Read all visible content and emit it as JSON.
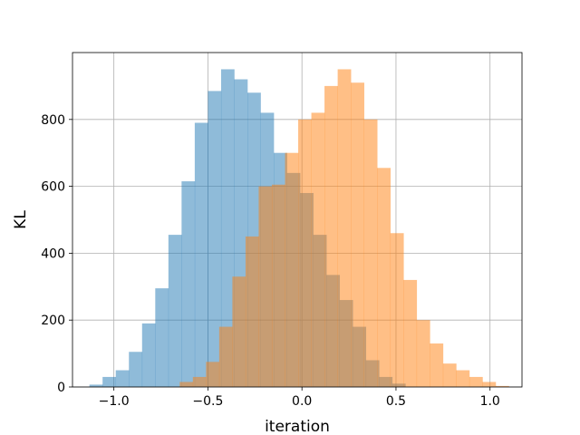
{
  "chart_data": {
    "type": "histogram",
    "title": "",
    "xlabel": "iteration",
    "ylabel": "KL",
    "xlim": [
      -1.22,
      1.17
    ],
    "ylim": [
      0,
      1000
    ],
    "xticks": [
      -1.0,
      -0.5,
      0.0,
      0.5,
      1.0
    ],
    "xtick_labels": [
      "−1.0",
      "−0.5",
      "0.0",
      "0.5",
      "1.0"
    ],
    "yticks": [
      0,
      200,
      400,
      600,
      800
    ],
    "ytick_labels": [
      "0",
      "200",
      "400",
      "600",
      "800"
    ],
    "grid": true,
    "series": [
      {
        "color": "#1f77b4",
        "alpha": 0.5,
        "bins": [
          [
            -1.13,
            -1.06,
            7
          ],
          [
            -1.06,
            -0.99,
            30
          ],
          [
            -0.99,
            -0.92,
            50
          ],
          [
            -0.92,
            -0.85,
            105
          ],
          [
            -0.85,
            -0.78,
            190
          ],
          [
            -0.78,
            -0.71,
            295
          ],
          [
            -0.71,
            -0.64,
            455
          ],
          [
            -0.64,
            -0.57,
            615
          ],
          [
            -0.57,
            -0.5,
            790
          ],
          [
            -0.5,
            -0.43,
            885
          ],
          [
            -0.43,
            -0.36,
            950
          ],
          [
            -0.36,
            -0.29,
            920
          ],
          [
            -0.29,
            -0.22,
            880
          ],
          [
            -0.22,
            -0.15,
            820
          ],
          [
            -0.15,
            -0.08,
            700
          ],
          [
            -0.08,
            -0.01,
            640
          ],
          [
            -0.01,
            0.06,
            580
          ],
          [
            0.06,
            0.13,
            455
          ],
          [
            0.13,
            0.2,
            335
          ],
          [
            0.2,
            0.27,
            260
          ],
          [
            0.27,
            0.34,
            180
          ],
          [
            0.34,
            0.41,
            80
          ],
          [
            0.41,
            0.48,
            30
          ],
          [
            0.48,
            0.55,
            10
          ]
        ]
      },
      {
        "color": "#ff7f0e",
        "alpha": 0.5,
        "bins": [
          [
            -0.65,
            -0.58,
            15
          ],
          [
            -0.58,
            -0.51,
            30
          ],
          [
            -0.51,
            -0.44,
            75
          ],
          [
            -0.44,
            -0.37,
            180
          ],
          [
            -0.37,
            -0.3,
            330
          ],
          [
            -0.3,
            -0.23,
            450
          ],
          [
            -0.23,
            -0.16,
            600
          ],
          [
            -0.16,
            -0.09,
            605
          ],
          [
            -0.09,
            -0.02,
            700
          ],
          [
            -0.02,
            0.05,
            800
          ],
          [
            0.05,
            0.12,
            820
          ],
          [
            0.12,
            0.19,
            900
          ],
          [
            0.19,
            0.26,
            950
          ],
          [
            0.26,
            0.33,
            910
          ],
          [
            0.33,
            0.4,
            800
          ],
          [
            0.4,
            0.47,
            655
          ],
          [
            0.47,
            0.54,
            460
          ],
          [
            0.54,
            0.61,
            320
          ],
          [
            0.61,
            0.68,
            200
          ],
          [
            0.68,
            0.75,
            130
          ],
          [
            0.75,
            0.82,
            70
          ],
          [
            0.82,
            0.89,
            50
          ],
          [
            0.89,
            0.96,
            30
          ],
          [
            0.96,
            1.03,
            15
          ],
          [
            1.03,
            1.1,
            3
          ]
        ]
      }
    ]
  }
}
